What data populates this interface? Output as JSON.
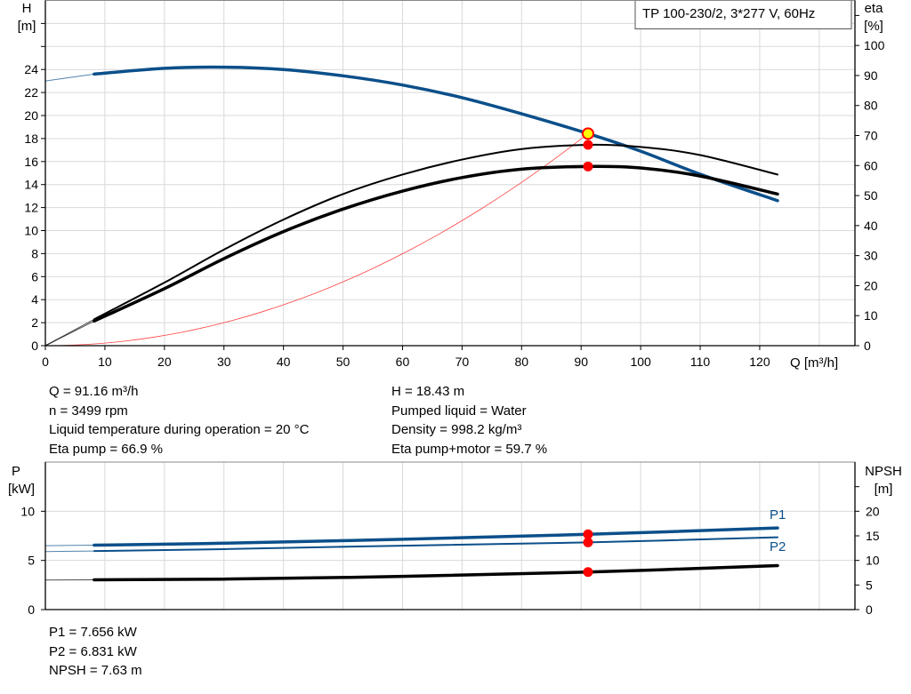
{
  "title_box": "TP 100-230/2, 3*277 V, 60Hz",
  "colors": {
    "head": "#0b4f8a",
    "efficiency": "#000000",
    "system": "#ff4040",
    "operating_point": "#ff0000",
    "duty_marker": "#ffff00"
  },
  "chart_data": [
    {
      "type": "line",
      "xlabel": "Q [m³/h]",
      "ylabel_left": [
        "H",
        "[m]"
      ],
      "ylabel_right": [
        "eta",
        "[%]"
      ],
      "xlim": [
        0,
        136
      ],
      "ylim_left": [
        0,
        30
      ],
      "ylim_right": [
        0,
        115
      ],
      "xticks": [
        0,
        10,
        20,
        30,
        40,
        50,
        60,
        70,
        80,
        90,
        100,
        110,
        120
      ],
      "yticks_left": [
        0,
        2,
        4,
        6,
        8,
        10,
        12,
        14,
        16,
        18,
        20,
        22,
        24
      ],
      "yticks_right": [
        0,
        10,
        20,
        30,
        40,
        50,
        60,
        70,
        80,
        90,
        100
      ],
      "grid": true,
      "series": [
        {
          "key": "H",
          "axis": "left",
          "color": "#0b4f8a",
          "extrapolated": [
            [
              0,
              23.0
            ],
            [
              8.2,
              23.6
            ]
          ],
          "points": [
            [
              8.2,
              23.6
            ],
            [
              20,
              24.1
            ],
            [
              30,
              24.2
            ],
            [
              40,
              24.0
            ],
            [
              50,
              23.45
            ],
            [
              60,
              22.65
            ],
            [
              70,
              21.55
            ],
            [
              80,
              20.15
            ],
            [
              91.16,
              18.43
            ],
            [
              100,
              16.9
            ],
            [
              110,
              14.9
            ],
            [
              123,
              12.6
            ]
          ]
        },
        {
          "key": "eta_pump",
          "axis": "right",
          "color": "#000000",
          "extrapolated": [
            [
              0,
              0
            ],
            [
              8.2,
              8.8
            ]
          ],
          "points": [
            [
              8.2,
              8.8
            ],
            [
              20,
              21
            ],
            [
              30,
              32
            ],
            [
              40,
              42
            ],
            [
              50,
              50.5
            ],
            [
              60,
              57
            ],
            [
              70,
              62
            ],
            [
              80,
              65.5
            ],
            [
              91.16,
              66.9
            ],
            [
              100,
              66.2
            ],
            [
              110,
              63.5
            ],
            [
              123,
              57
            ]
          ]
        },
        {
          "key": "eta_pump_motor",
          "axis": "right",
          "color": "#000000",
          "extrapolated": [
            [
              0,
              0
            ],
            [
              8.2,
              8.2
            ]
          ],
          "points": [
            [
              8.2,
              8.2
            ],
            [
              20,
              19
            ],
            [
              30,
              29
            ],
            [
              40,
              38
            ],
            [
              50,
              45.5
            ],
            [
              60,
              51.5
            ],
            [
              70,
              56
            ],
            [
              80,
              58.8
            ],
            [
              91.16,
              59.7
            ],
            [
              100,
              59.2
            ],
            [
              110,
              56.5
            ],
            [
              123,
              50.5
            ]
          ]
        },
        {
          "key": "system",
          "axis": "left",
          "color": "#ff4040",
          "formula": "H = 18.43*(Q/91.16)^2",
          "range": [
            0,
            91.16
          ]
        }
      ],
      "operating_points": [
        {
          "axis": "left",
          "x": 91.16,
          "y": 18.43,
          "marker": "yellow-red"
        },
        {
          "axis": "right",
          "x": 91.16,
          "y": 66.9
        },
        {
          "axis": "right",
          "x": 91.16,
          "y": 59.7
        }
      ]
    },
    {
      "type": "line",
      "ylabel_left": [
        "P",
        "[kW]"
      ],
      "ylabel_right": [
        "NPSH",
        "[m]"
      ],
      "xlim": [
        0,
        136
      ],
      "ylim_left": [
        0,
        15
      ],
      "ylim_right": [
        0,
        30
      ],
      "yticks_left": [
        0,
        5,
        10
      ],
      "yticks_right": [
        0,
        5,
        10,
        15,
        20
      ],
      "grid": true,
      "series": [
        {
          "name": "P1",
          "axis": "left",
          "color": "#0b4f8a",
          "extrapolated": [
            [
              0,
              6.5
            ],
            [
              8.2,
              6.55
            ]
          ],
          "points": [
            [
              8.2,
              6.55
            ],
            [
              30,
              6.75
            ],
            [
              60,
              7.15
            ],
            [
              91.16,
              7.656
            ],
            [
              123,
              8.3
            ]
          ]
        },
        {
          "name": "P2",
          "axis": "left",
          "color": "#0b4f8a",
          "extrapolated": [
            [
              0,
              5.9
            ],
            [
              8.2,
              5.95
            ]
          ],
          "points": [
            [
              8.2,
              5.95
            ],
            [
              30,
              6.15
            ],
            [
              60,
              6.5
            ],
            [
              91.16,
              6.831
            ],
            [
              123,
              7.35
            ]
          ]
        },
        {
          "key": "NPSH",
          "axis": "right",
          "color": "#000000",
          "extrapolated": [
            [
              0,
              6.0
            ],
            [
              8.2,
              6.05
            ]
          ],
          "points": [
            [
              8.2,
              6.05
            ],
            [
              30,
              6.2
            ],
            [
              60,
              6.75
            ],
            [
              91.16,
              7.63
            ],
            [
              123,
              8.95
            ]
          ]
        }
      ],
      "operating_points": [
        {
          "axis": "left",
          "x": 91.16,
          "y": 7.656
        },
        {
          "axis": "left",
          "x": 91.16,
          "y": 6.831
        },
        {
          "axis": "right",
          "x": 91.16,
          "y": 7.63
        }
      ]
    }
  ],
  "info_top": {
    "left": [
      "Q = 91.16 m³/h",
      "n = 3499 rpm",
      "Liquid temperature during operation = 20 °C",
      "Eta pump = 66.9 %"
    ],
    "right": [
      "H = 18.43 m",
      "Pumped liquid = Water",
      "Density = 998.2 kg/m³",
      "Eta pump+motor = 59.7 %"
    ]
  },
  "info_bottom": [
    "P1 = 7.656 kW",
    "P2 = 6.831 kW",
    "NPSH = 7.63 m"
  ]
}
